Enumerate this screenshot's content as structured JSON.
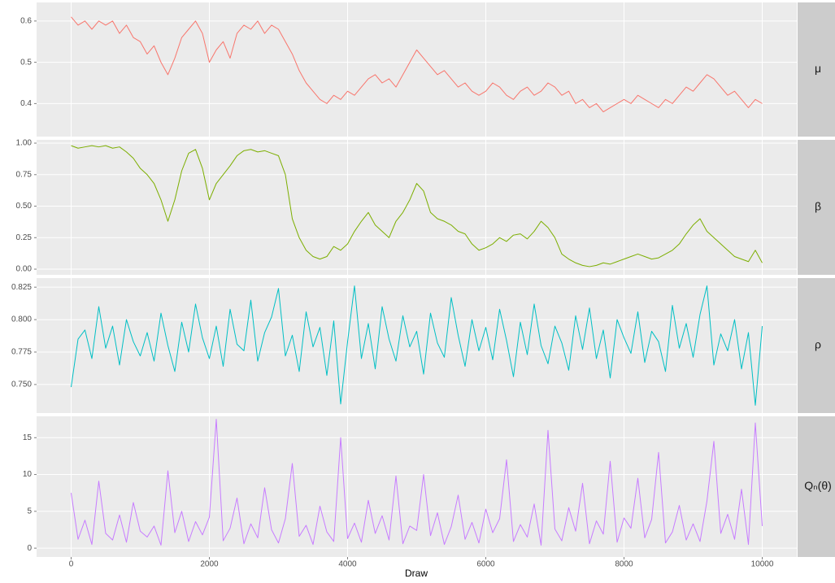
{
  "chart_data": {
    "type": "line",
    "xlabel": "Draw",
    "xlim": [
      -500,
      10500
    ],
    "xticks": [
      0,
      2000,
      4000,
      6000,
      8000,
      10000
    ],
    "grid": true,
    "x": [
      0,
      100,
      200,
      300,
      400,
      500,
      600,
      700,
      800,
      900,
      1000,
      1100,
      1200,
      1300,
      1400,
      1500,
      1600,
      1700,
      1800,
      1900,
      2000,
      2100,
      2200,
      2300,
      2400,
      2500,
      2600,
      2700,
      2800,
      2900,
      3000,
      3100,
      3200,
      3300,
      3400,
      3500,
      3600,
      3700,
      3800,
      3900,
      4000,
      4100,
      4200,
      4300,
      4400,
      4500,
      4600,
      4700,
      4800,
      4900,
      5000,
      5100,
      5200,
      5300,
      5400,
      5500,
      5600,
      5700,
      5800,
      5900,
      6000,
      6100,
      6200,
      6300,
      6400,
      6500,
      6600,
      6700,
      6800,
      6900,
      7000,
      7100,
      7200,
      7300,
      7400,
      7500,
      7600,
      7700,
      7800,
      7900,
      8000,
      8100,
      8200,
      8300,
      8400,
      8500,
      8600,
      8700,
      8800,
      8900,
      9000,
      9100,
      9200,
      9300,
      9400,
      9500,
      9600,
      9700,
      9800,
      9900,
      10000
    ],
    "panels": [
      {
        "label": "μ",
        "ylim": [
          0.32,
          0.645
        ],
        "yticks": [
          0.4,
          0.5,
          0.6
        ],
        "series": [
          {
            "color": "#F8766D",
            "values": [
              0.61,
              0.59,
              0.6,
              0.58,
              0.6,
              0.59,
              0.6,
              0.57,
              0.59,
              0.56,
              0.55,
              0.52,
              0.54,
              0.5,
              0.47,
              0.51,
              0.56,
              0.58,
              0.6,
              0.57,
              0.5,
              0.53,
              0.55,
              0.51,
              0.57,
              0.59,
              0.58,
              0.6,
              0.57,
              0.59,
              0.58,
              0.55,
              0.52,
              0.48,
              0.45,
              0.43,
              0.41,
              0.4,
              0.42,
              0.41,
              0.43,
              0.42,
              0.44,
              0.46,
              0.47,
              0.45,
              0.46,
              0.44,
              0.47,
              0.5,
              0.53,
              0.51,
              0.49,
              0.47,
              0.48,
              0.46,
              0.44,
              0.45,
              0.43,
              0.42,
              0.43,
              0.45,
              0.44,
              0.42,
              0.41,
              0.43,
              0.44,
              0.42,
              0.43,
              0.45,
              0.44,
              0.42,
              0.43,
              0.4,
              0.41,
              0.39,
              0.4,
              0.38,
              0.39,
              0.4,
              0.41,
              0.4,
              0.42,
              0.41,
              0.4,
              0.39,
              0.41,
              0.4,
              0.42,
              0.44,
              0.43,
              0.45,
              0.47,
              0.46,
              0.44,
              0.42,
              0.43,
              0.41,
              0.39,
              0.41,
              0.4
            ]
          }
        ]
      },
      {
        "label": "β",
        "ylim": [
          -0.045,
          1.026
        ],
        "yticks": [
          {
            "value": 0,
            "label": "0.00"
          },
          0.25,
          {
            "value": 0.5,
            "label": "0.50"
          },
          0.75,
          {
            "value": 1,
            "label": "1.00"
          }
        ],
        "series": [
          {
            "color": "#7CAE00",
            "values": [
              0.98,
              0.96,
              0.97,
              0.98,
              0.97,
              0.98,
              0.96,
              0.97,
              0.93,
              0.88,
              0.8,
              0.75,
              0.68,
              0.55,
              0.38,
              0.55,
              0.78,
              0.92,
              0.95,
              0.8,
              0.55,
              0.68,
              0.75,
              0.82,
              0.9,
              0.94,
              0.95,
              0.93,
              0.94,
              0.92,
              0.9,
              0.75,
              0.4,
              0.25,
              0.15,
              0.1,
              0.08,
              0.1,
              0.18,
              0.15,
              0.2,
              0.3,
              0.38,
              0.45,
              0.35,
              0.3,
              0.25,
              0.38,
              0.45,
              0.55,
              0.68,
              0.62,
              0.45,
              0.4,
              0.38,
              0.35,
              0.3,
              0.28,
              0.2,
              0.15,
              0.17,
              0.2,
              0.25,
              0.22,
              0.27,
              0.28,
              0.24,
              0.3,
              0.38,
              0.33,
              0.25,
              0.12,
              0.08,
              0.05,
              0.03,
              0.02,
              0.03,
              0.05,
              0.04,
              0.06,
              0.08,
              0.1,
              0.12,
              0.1,
              0.08,
              0.09,
              0.12,
              0.15,
              0.2,
              0.28,
              0.35,
              0.4,
              0.3,
              0.25,
              0.2,
              0.15,
              0.1,
              0.08,
              0.06,
              0.15,
              0.05
            ]
          }
        ]
      },
      {
        "label": "ρ",
        "ylim": [
          0.728,
          0.832
        ],
        "yticks": [
          {
            "value": 0.75,
            "label": "0.750"
          },
          0.775,
          {
            "value": 0.8,
            "label": "0.800"
          },
          0.825
        ],
        "series": [
          {
            "color": "#00BFC4",
            "values": [
              0.748,
              0.785,
              0.792,
              0.77,
              0.81,
              0.778,
              0.795,
              0.765,
              0.8,
              0.783,
              0.772,
              0.79,
              0.768,
              0.805,
              0.78,
              0.76,
              0.798,
              0.775,
              0.812,
              0.786,
              0.77,
              0.795,
              0.764,
              0.808,
              0.781,
              0.776,
              0.815,
              0.768,
              0.79,
              0.802,
              0.824,
              0.772,
              0.788,
              0.76,
              0.806,
              0.779,
              0.794,
              0.757,
              0.799,
              0.735,
              0.783,
              0.826,
              0.77,
              0.797,
              0.762,
              0.81,
              0.785,
              0.768,
              0.803,
              0.779,
              0.791,
              0.758,
              0.805,
              0.782,
              0.771,
              0.817,
              0.788,
              0.764,
              0.8,
              0.776,
              0.794,
              0.769,
              0.808,
              0.784,
              0.756,
              0.798,
              0.773,
              0.812,
              0.78,
              0.766,
              0.795,
              0.782,
              0.761,
              0.803,
              0.777,
              0.809,
              0.77,
              0.792,
              0.755,
              0.8,
              0.786,
              0.774,
              0.806,
              0.767,
              0.791,
              0.783,
              0.76,
              0.811,
              0.778,
              0.797,
              0.771,
              0.804,
              0.826,
              0.765,
              0.789,
              0.776,
              0.8,
              0.762,
              0.79,
              0.734,
              0.795
            ]
          }
        ]
      },
      {
        "label": "Qₙ(θ)",
        "ylim": [
          -1.2,
          17.9
        ],
        "yticks": [
          0,
          5,
          10,
          15
        ],
        "series": [
          {
            "color": "#C77CFF",
            "values": [
              7.5,
              1.2,
              3.8,
              0.5,
              9.1,
              2.0,
              1.1,
              4.5,
              0.8,
              6.2,
              2.3,
              1.5,
              3.0,
              0.4,
              10.5,
              2.1,
              5.0,
              0.9,
              3.6,
              1.8,
              4.2,
              17.5,
              1.0,
              2.7,
              6.8,
              0.6,
              3.3,
              1.4,
              8.2,
              2.5,
              0.7,
              4.0,
              11.5,
              1.6,
              3.1,
              0.5,
              5.7,
              2.2,
              0.9,
              15.0,
              1.3,
              3.4,
              0.8,
              6.5,
              2.0,
              4.4,
              1.1,
              9.8,
              0.6,
              3.0,
              2.4,
              10.0,
              1.7,
              4.8,
              0.5,
              2.9,
              7.2,
              1.2,
              3.5,
              0.7,
              5.3,
              2.1,
              4.0,
              12.0,
              0.9,
              3.2,
              1.5,
              6.0,
              0.4,
              16.0,
              2.6,
              1.0,
              5.5,
              2.3,
              8.8,
              0.6,
              3.7,
              1.9,
              11.8,
              0.8,
              4.1,
              2.7,
              9.5,
              1.4,
              3.9,
              13.0,
              0.7,
              2.2,
              5.8,
              1.1,
              3.3,
              0.9,
              6.4,
              14.5,
              2.0,
              4.6,
              1.2,
              8.0,
              0.5,
              17.0,
              3.0
            ]
          }
        ]
      }
    ]
  }
}
